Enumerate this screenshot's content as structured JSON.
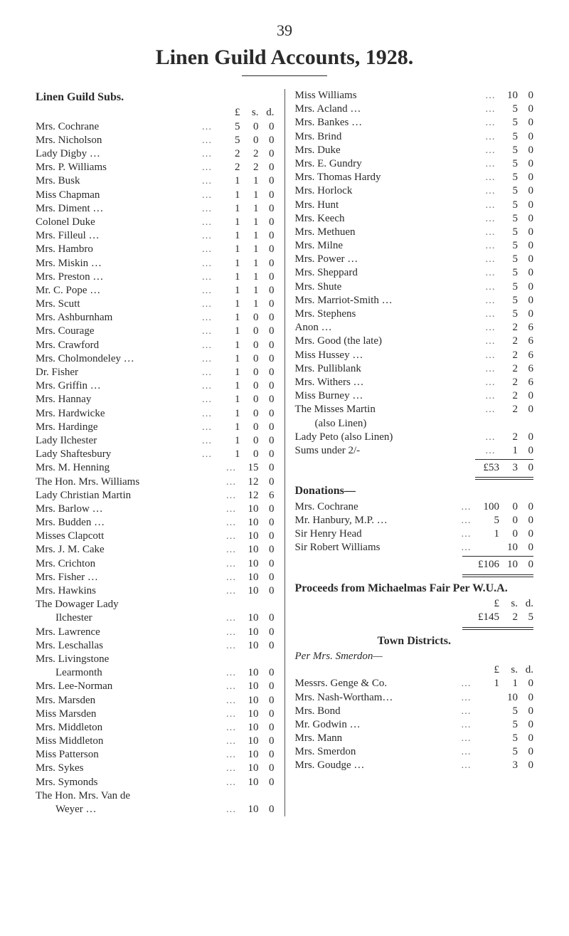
{
  "page_number": "39",
  "title": "Linen Guild Accounts, 1928.",
  "left": {
    "section": "Linen Guild Subs.",
    "header": {
      "l": "£",
      "s": "s.",
      "d": "d."
    },
    "items_with_pounds": [
      {
        "label": "Mrs. Cochrane",
        "l": "5",
        "s": "0",
        "d": "0"
      },
      {
        "label": "Mrs. Nicholson",
        "l": "5",
        "s": "0",
        "d": "0"
      },
      {
        "label": "Lady Digby …",
        "l": "2",
        "s": "2",
        "d": "0"
      },
      {
        "label": "Mrs. P. Williams",
        "l": "2",
        "s": "2",
        "d": "0"
      },
      {
        "label": "Mrs. Busk",
        "l": "1",
        "s": "1",
        "d": "0"
      },
      {
        "label": "Miss Chapman",
        "l": "1",
        "s": "1",
        "d": "0"
      },
      {
        "label": "Mrs. Diment …",
        "l": "1",
        "s": "1",
        "d": "0"
      },
      {
        "label": "Colonel Duke",
        "l": "1",
        "s": "1",
        "d": "0"
      },
      {
        "label": "Mrs. Filleul …",
        "l": "1",
        "s": "1",
        "d": "0"
      },
      {
        "label": "Mrs. Hambro",
        "l": "1",
        "s": "1",
        "d": "0"
      },
      {
        "label": "Mrs. Miskin …",
        "l": "1",
        "s": "1",
        "d": "0"
      },
      {
        "label": "Mrs. Preston …",
        "l": "1",
        "s": "1",
        "d": "0"
      },
      {
        "label": "Mr. C. Pope …",
        "l": "1",
        "s": "1",
        "d": "0"
      },
      {
        "label": "Mrs. Scutt",
        "l": "1",
        "s": "1",
        "d": "0"
      },
      {
        "label": "Mrs. Ashburnham",
        "l": "1",
        "s": "0",
        "d": "0"
      },
      {
        "label": "Mrs. Courage",
        "l": "1",
        "s": "0",
        "d": "0"
      },
      {
        "label": "Mrs. Crawford",
        "l": "1",
        "s": "0",
        "d": "0"
      },
      {
        "label": "Mrs. Cholmondeley …",
        "l": "1",
        "s": "0",
        "d": "0"
      },
      {
        "label": "Dr. Fisher",
        "l": "1",
        "s": "0",
        "d": "0"
      },
      {
        "label": "Mrs. Griffin …",
        "l": "1",
        "s": "0",
        "d": "0"
      },
      {
        "label": "Mrs. Hannay",
        "l": "1",
        "s": "0",
        "d": "0"
      },
      {
        "label": "Mrs. Hardwicke",
        "l": "1",
        "s": "0",
        "d": "0"
      },
      {
        "label": "Mrs. Hardinge",
        "l": "1",
        "s": "0",
        "d": "0"
      },
      {
        "label": "Lady Ilchester",
        "l": "1",
        "s": "0",
        "d": "0"
      },
      {
        "label": "Lady Shaftesbury",
        "l": "1",
        "s": "0",
        "d": "0"
      }
    ],
    "items_no_pounds": [
      {
        "label": "Mrs. M. Henning",
        "s": "15",
        "d": "0"
      },
      {
        "label": "The Hon. Mrs. Williams",
        "s": "12",
        "d": "0"
      },
      {
        "label": "Lady Christian Martin",
        "s": "12",
        "d": "6"
      },
      {
        "label": "Mrs. Barlow …",
        "s": "10",
        "d": "0"
      },
      {
        "label": "Mrs. Budden …",
        "s": "10",
        "d": "0"
      },
      {
        "label": "Misses Clapcott",
        "s": "10",
        "d": "0"
      },
      {
        "label": "Mrs. J. M. Cake",
        "s": "10",
        "d": "0"
      },
      {
        "label": "Mrs. Crichton",
        "s": "10",
        "d": "0"
      },
      {
        "label": "Mrs. Fisher …",
        "s": "10",
        "d": "0"
      },
      {
        "label": "Mrs. Hawkins",
        "s": "10",
        "d": "0"
      },
      {
        "label": "The Dowager Lady",
        "s": "",
        "d": ""
      },
      {
        "label": "Ilchester",
        "continued": true,
        "s": "10",
        "d": "0"
      },
      {
        "label": "Mrs. Lawrence",
        "s": "10",
        "d": "0"
      },
      {
        "label": "Mrs. Leschallas",
        "s": "10",
        "d": "0"
      },
      {
        "label": "Mrs. Livingstone",
        "s": "",
        "d": ""
      },
      {
        "label": "Learmonth",
        "continued": true,
        "s": "10",
        "d": "0"
      },
      {
        "label": "Mrs. Lee-Norman",
        "s": "10",
        "d": "0"
      },
      {
        "label": "Mrs. Marsden",
        "s": "10",
        "d": "0"
      },
      {
        "label": "Miss Marsden",
        "s": "10",
        "d": "0"
      },
      {
        "label": "Mrs. Middleton",
        "s": "10",
        "d": "0"
      },
      {
        "label": "Miss Middleton",
        "s": "10",
        "d": "0"
      },
      {
        "label": "Miss Patterson",
        "s": "10",
        "d": "0"
      },
      {
        "label": "Mrs. Sykes",
        "s": "10",
        "d": "0"
      },
      {
        "label": "Mrs. Symonds",
        "s": "10",
        "d": "0"
      },
      {
        "label": "The Hon. Mrs. Van de",
        "s": "",
        "d": ""
      },
      {
        "label": "Weyer …",
        "continued": true,
        "s": "10",
        "d": "0"
      }
    ]
  },
  "right": {
    "subs_continued": [
      {
        "label": "Miss Williams",
        "s": "10",
        "d": "0"
      },
      {
        "label": "Mrs. Acland …",
        "s": "5",
        "d": "0"
      },
      {
        "label": "Mrs. Bankes …",
        "s": "5",
        "d": "0"
      },
      {
        "label": "Mrs. Brind",
        "s": "5",
        "d": "0"
      },
      {
        "label": "Mrs. Duke",
        "s": "5",
        "d": "0"
      },
      {
        "label": "Mrs. E. Gundry",
        "s": "5",
        "d": "0"
      },
      {
        "label": "Mrs. Thomas Hardy",
        "s": "5",
        "d": "0"
      },
      {
        "label": "Mrs. Horlock",
        "s": "5",
        "d": "0"
      },
      {
        "label": "Mrs. Hunt",
        "s": "5",
        "d": "0"
      },
      {
        "label": "Mrs. Keech",
        "s": "5",
        "d": "0"
      },
      {
        "label": "Mrs. Methuen",
        "s": "5",
        "d": "0"
      },
      {
        "label": "Mrs. Milne",
        "s": "5",
        "d": "0"
      },
      {
        "label": "Mrs. Power …",
        "s": "5",
        "d": "0"
      },
      {
        "label": "Mrs. Sheppard",
        "s": "5",
        "d": "0"
      },
      {
        "label": "Mrs. Shute",
        "s": "5",
        "d": "0"
      },
      {
        "label": "Mrs. Marriot-Smith …",
        "s": "5",
        "d": "0"
      },
      {
        "label": "Mrs. Stephens",
        "s": "5",
        "d": "0"
      },
      {
        "label": "Anon …",
        "s": "2",
        "d": "6"
      },
      {
        "label": "Mrs. Good (the late)",
        "s": "2",
        "d": "6"
      },
      {
        "label": "Miss Hussey …",
        "s": "2",
        "d": "6"
      },
      {
        "label": "Mrs. Pulliblank",
        "s": "2",
        "d": "6"
      },
      {
        "label": "Mrs. Withers …",
        "s": "2",
        "d": "6"
      },
      {
        "label": "Miss Burney …",
        "s": "2",
        "d": "0"
      },
      {
        "label": "The Misses Martin",
        "s": "2",
        "d": "0"
      },
      {
        "label": "(also Linen)",
        "continued": true,
        "s": "",
        "d": ""
      },
      {
        "label": "Lady Peto (also Linen)",
        "s": "2",
        "d": "0"
      },
      {
        "label": "Sums under 2/-",
        "s": "1",
        "d": "0"
      }
    ],
    "subs_total": {
      "l": "£53",
      "s": "3",
      "d": "0"
    },
    "donations_title": "Donations—",
    "donations": [
      {
        "label": "Mrs. Cochrane",
        "l": "100",
        "s": "0",
        "d": "0"
      },
      {
        "label": "Mr. Hanbury, M.P. …",
        "l": "5",
        "s": "0",
        "d": "0"
      },
      {
        "label": "Sir Henry Head",
        "l": "1",
        "s": "0",
        "d": "0"
      },
      {
        "label": "Sir Robert Williams",
        "l": "",
        "s": "10",
        "d": "0"
      }
    ],
    "donations_total": {
      "l": "£106",
      "s": "10",
      "d": "0"
    },
    "proceeds_title": "Proceeds from Michaelmas Fair Per W.U.A.",
    "proceeds_header": {
      "l": "£",
      "s": "s.",
      "d": "d."
    },
    "proceeds_total": {
      "l": "£145",
      "s": "2",
      "d": "5"
    },
    "town_title": "Town Districts.",
    "town_subtitle": "Per Mrs. Smerdon—",
    "town_header": {
      "l": "£",
      "s": "s.",
      "d": "d."
    },
    "town": [
      {
        "label": "Messrs. Genge & Co.",
        "l": "1",
        "s": "1",
        "d": "0"
      },
      {
        "label": "Mrs. Nash-Wortham…",
        "l": "",
        "s": "10",
        "d": "0"
      },
      {
        "label": "Mrs. Bond",
        "l": "",
        "s": "5",
        "d": "0"
      },
      {
        "label": "Mr. Godwin …",
        "l": "",
        "s": "5",
        "d": "0"
      },
      {
        "label": "Mrs. Mann",
        "l": "",
        "s": "5",
        "d": "0"
      },
      {
        "label": "Mrs. Smerdon",
        "l": "",
        "s": "5",
        "d": "0"
      },
      {
        "label": "Mrs. Goudge …",
        "l": "",
        "s": "3",
        "d": "0"
      }
    ]
  }
}
